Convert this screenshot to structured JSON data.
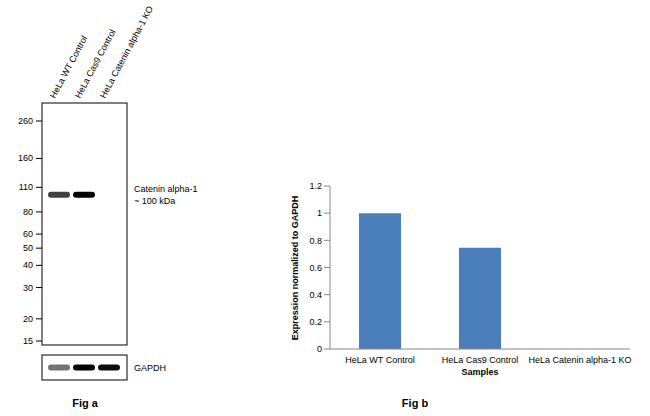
{
  "chart_data": {
    "type": "bar",
    "title": "Fig b",
    "xlabel": "Samples",
    "ylabel": "Expression normalized to GAPDH",
    "categories": [
      "HeLa WT Control",
      "HeLa Cas9 Control",
      "HeLa Catenin alpha-1 KO"
    ],
    "values": [
      1,
      0.745,
      0
    ],
    "color": "#4a7ebb",
    "ylim": [
      0,
      1.2
    ],
    "yticks": [
      0,
      0.2,
      0.4,
      0.6,
      0.8,
      1,
      1.2
    ],
    "grid": false
  },
  "blot": {
    "title": "Fig a",
    "lanes": [
      "HeLa WT Control",
      "HeLa Cas9 Control",
      "HeLa Catenin alpha-1 KO"
    ],
    "markers": [
      260,
      160,
      110,
      80,
      60,
      50,
      40,
      30,
      20,
      15
    ],
    "target": {
      "label": "Catenin alpha-1",
      "size_label": "~ 100 kDa",
      "kda": 100,
      "intensities": [
        0.75,
        1,
        0
      ]
    },
    "loading_control": {
      "label": "GAPDH",
      "intensities": [
        0.55,
        1,
        0.95
      ]
    }
  }
}
